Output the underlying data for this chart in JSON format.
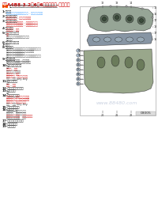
{
  "title": "奥迣A4B8-3.2升6罐6直喷发动机-气门机构",
  "bg_color": "#ffffff",
  "figsize": [
    2.0,
    2.82
  ],
  "dpi": 100,
  "watermark": "www.88480.com",
  "page_num": "03005",
  "section_data": [
    {
      "num": "1-",
      "title": "气门盖",
      "items": []
    },
    {
      "num": "",
      "title": "",
      "items": [
        {
          "text": "拆安气门盖时，注意密封圆墙 - 参见拆安气门盖",
          "color": "#3399ff"
        }
      ]
    },
    {
      "num": "2-",
      "title": "气门盖密封唇",
      "items": []
    },
    {
      "num": "",
      "title": "",
      "items": [
        {
          "text": "气门盖密封唇 - 参见拆安气门盖",
          "color": "#cc0000"
        }
      ]
    },
    {
      "num": "3-",
      "title": "气门盖密封件",
      "items": []
    },
    {
      "num": "",
      "title": "",
      "items": [
        {
          "text": "气门盖密封件（内圆） - 参见拆安气门盖",
          "color": "#cc0000"
        },
        {
          "text": "气门盖密封件（外圆） - 参见拆安气门盖",
          "color": "#cc0000"
        }
      ]
    },
    {
      "num": "4-",
      "title": "气门导管",
      "items": []
    },
    {
      "num": "",
      "title": "",
      "items": [
        {
          "text": "气门导管 - 参见",
          "color": "#cc0000"
        }
      ]
    },
    {
      "num": "5-",
      "title": "气门导管岁年将",
      "items": []
    },
    {
      "num": "",
      "title": "",
      "items": [
        {
          "text": "安装",
          "color": "#cc0000"
        },
        {
          "text": "气门导管与岁年将间隙检测备注",
          "color": "#333333"
        },
        {
          "text": "安装封唇",
          "color": "#333333"
        }
      ]
    },
    {
      "num": "6-",
      "title": "气门导管扩应器",
      "items": []
    },
    {
      "num": "7-",
      "title": "气门",
      "items": []
    },
    {
      "num": "8-",
      "title": "气门弹簧",
      "items": []
    },
    {
      "num": "",
      "title": "",
      "items": [
        {
          "text": "气门弹簧预紧力检测，不合格则更换气门弹簧组",
          "color": "#333333"
        },
        {
          "text": "气门弹簧建议更换设备：弹簧安装工具",
          "color": "#333333"
        },
        {
          "text": "安装与安装工具一起使用",
          "color": "#333333"
        },
        {
          "text": "气门弹簧检测设备，尝试更换弹簧（参见拆安）",
          "color": "#333333"
        }
      ]
    },
    {
      "num": "9-",
      "title": "气门弹簧盖",
      "items": []
    },
    {
      "num": "",
      "title": "",
      "items": [
        {
          "text": "安装时，注意密封 - 参见拆安",
          "color": "#333333"
        },
        {
          "text": "气门弹簧盖密封相和弹簧干涉检测",
          "color": "#333333"
        }
      ]
    },
    {
      "num": "10-",
      "title": "气门弹簧座被管",
      "items": []
    },
    {
      "num": "",
      "title": "",
      "items": [
        {
          "text": "安装",
          "color": "#333333"
        },
        {
          "text": "预紧力 - 参见",
          "color": "#cc0000"
        },
        {
          "text": "气门弹簧座被管导管",
          "color": "#333333"
        },
        {
          "text": "尾端尾端 - 参见",
          "color": "#cc0000"
        },
        {
          "text": "预紧力要求 - 参见属地封尴",
          "color": "#cc0000"
        },
        {
          "text": "层层 - 参见 key-key",
          "color": "#333333"
        }
      ]
    },
    {
      "num": "11-",
      "title": "气门弹簧座",
      "items": []
    },
    {
      "num": "",
      "title": "",
      "items": [
        {
          "text": "检查",
          "color": "#333333"
        },
        {
          "text": "安装 - 参见",
          "color": "#cc0000"
        }
      ]
    },
    {
      "num": "12-",
      "title": "气门弹簧座密封件",
      "items": []
    },
    {
      "num": "13-",
      "title": "半圈锁片",
      "items": []
    },
    {
      "num": "",
      "title": "",
      "items": [
        {
          "text": "半圈",
          "color": "#333333"
        }
      ]
    },
    {
      "num": "14-",
      "title": "气门弹簧座盖",
      "items": []
    },
    {
      "num": "",
      "title": "",
      "items": [
        {
          "text": "安装工具 - 参见拆安属地密尴",
          "color": "#cc0000"
        },
        {
          "text": "周期需要更换 - 参见元件数据",
          "color": "#cc0000"
        },
        {
          "text": "安装规定 - 参见元件数据",
          "color": "#cc0000"
        },
        {
          "text": "密封 - 参见 key-key",
          "color": "#333333"
        }
      ]
    },
    {
      "num": "15-",
      "title": "气门弹簧座盖",
      "items": []
    },
    {
      "num": "16-",
      "title": "气门弹簧座",
      "items": []
    },
    {
      "num": "",
      "title": "",
      "items": [
        {
          "text": "安装工具 - 参见元件数据",
          "color": "#333333"
        },
        {
          "text": "安装规定 - 参见元件数据",
          "color": "#333333"
        },
        {
          "text": "气门弹簧座将顶面 - 参见元件数据",
          "color": "#cc0000"
        },
        {
          "text": "气门弹簧座密封件 - 参见",
          "color": "#333333"
        }
      ]
    },
    {
      "num": "17-",
      "title": "气门弹簧座密封件",
      "items": []
    },
    {
      "num": "18-",
      "title": "气门弹簧座",
      "items": []
    },
    {
      "num": "19-",
      "title": "气门弹簧",
      "items": []
    }
  ]
}
